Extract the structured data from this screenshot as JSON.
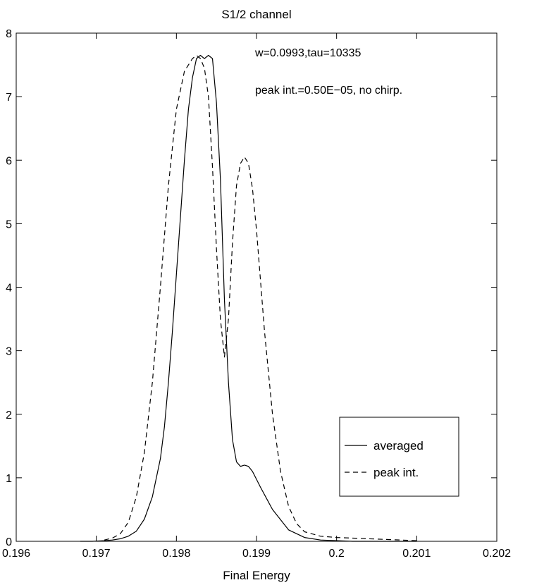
{
  "chart_data": {
    "type": "line",
    "title": "S1/2 channel",
    "xlabel": "Final Energy",
    "ylabel": "",
    "xlim": [
      0.196,
      0.202
    ],
    "ylim": [
      0,
      8
    ],
    "xticks": [
      0.196,
      0.197,
      0.198,
      0.199,
      0.2,
      0.201,
      0.202
    ],
    "xtick_labels": [
      "0.196",
      "0.197",
      "0.198",
      "0.199",
      "0.2",
      "0.201",
      "0.202"
    ],
    "yticks": [
      0,
      1,
      2,
      3,
      4,
      5,
      6,
      7,
      8
    ],
    "ytick_labels": [
      "0",
      "1",
      "2",
      "3",
      "4",
      "5",
      "6",
      "7",
      "8"
    ],
    "grid": false,
    "legend_position": "bottom-right",
    "annotations": [
      "w=0.0993,tau=10335",
      "peak int.=0.50E−05, no chirp."
    ],
    "series": [
      {
        "name": "averaged",
        "line_style": "solid",
        "color": "#000000",
        "x": [
          0.1968,
          0.19695,
          0.1971,
          0.1972,
          0.1973,
          0.1974,
          0.1975,
          0.1976,
          0.1977,
          0.1978,
          0.19785,
          0.1979,
          0.19795,
          0.198,
          0.19805,
          0.1981,
          0.19815,
          0.1982,
          0.19825,
          0.1983,
          0.19835,
          0.1984,
          0.19845,
          0.1985,
          0.19855,
          0.1986,
          0.19865,
          0.1987,
          0.19875,
          0.1988,
          0.19885,
          0.1989,
          0.19895,
          0.19905,
          0.1992,
          0.1994,
          0.1996,
          0.1998,
          0.2,
          0.2002,
          0.2005,
          0.2008,
          0.201
        ],
        "y": [
          0,
          0,
          0.01,
          0.02,
          0.04,
          0.08,
          0.16,
          0.35,
          0.7,
          1.3,
          1.8,
          2.5,
          3.3,
          4.2,
          5.1,
          6.0,
          6.8,
          7.3,
          7.6,
          7.65,
          7.6,
          7.65,
          7.6,
          6.9,
          5.7,
          3.8,
          2.5,
          1.6,
          1.25,
          1.18,
          1.2,
          1.18,
          1.1,
          0.85,
          0.5,
          0.18,
          0.06,
          0.02,
          0.01,
          0,
          0,
          0,
          0
        ]
      },
      {
        "name": "peak int.",
        "line_style": "dashed",
        "color": "#000000",
        "x": [
          0.1971,
          0.1972,
          0.1973,
          0.1974,
          0.1975,
          0.1976,
          0.1977,
          0.1978,
          0.1979,
          0.198,
          0.1981,
          0.1982,
          0.19825,
          0.1983,
          0.19835,
          0.1984,
          0.19845,
          0.1985,
          0.19855,
          0.1986,
          0.19865,
          0.1987,
          0.19875,
          0.1988,
          0.19885,
          0.1989,
          0.19895,
          0.199,
          0.1991,
          0.1992,
          0.1993,
          0.1994,
          0.1995,
          0.1996,
          0.1998,
          0.2,
          0.2002,
          0.2004,
          0.2006,
          0.2008,
          0.201
        ],
        "y": [
          0.02,
          0.05,
          0.12,
          0.3,
          0.7,
          1.4,
          2.5,
          4.0,
          5.6,
          6.8,
          7.4,
          7.6,
          7.65,
          7.6,
          7.45,
          7.0,
          5.9,
          4.6,
          3.5,
          2.9,
          3.5,
          4.7,
          5.6,
          5.95,
          6.05,
          5.95,
          5.55,
          4.9,
          3.3,
          2.0,
          1.1,
          0.55,
          0.28,
          0.15,
          0.08,
          0.06,
          0.05,
          0.04,
          0.03,
          0.02,
          0.01
        ]
      }
    ]
  }
}
